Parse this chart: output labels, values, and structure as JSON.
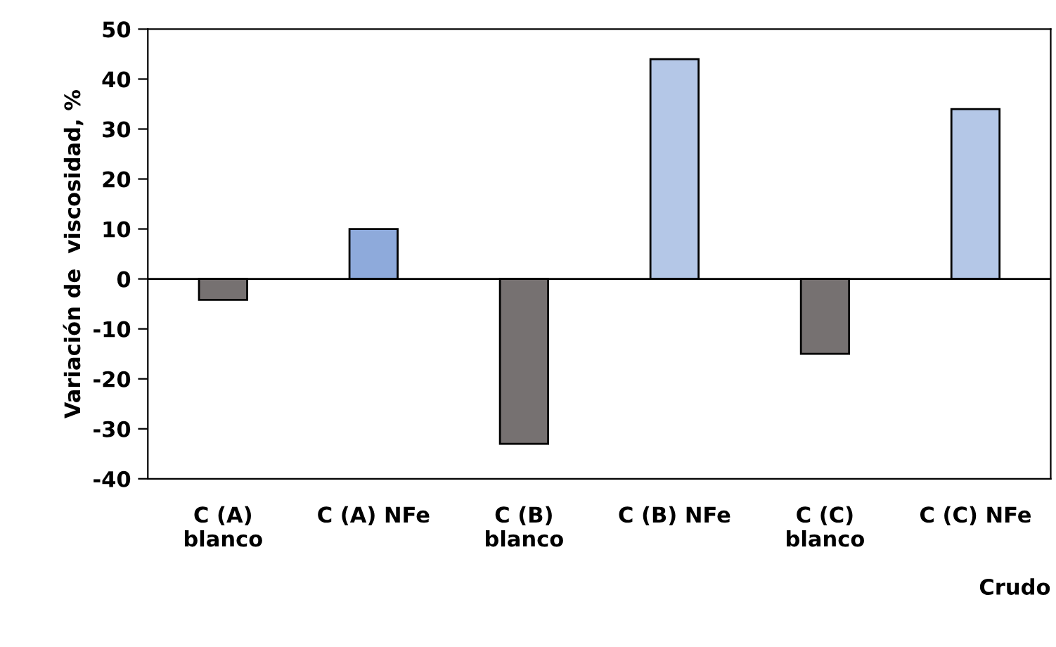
{
  "chart_data": {
    "type": "bar",
    "xlabel": "Crudo",
    "ylabel": "Variación de  viscosidad, %",
    "categories": [
      "C (A)\nblanco",
      "C (A) NFe",
      "C (B)\nblanco",
      "C (B) NFe",
      "C (C)\nblanco",
      "C (C) NFe"
    ],
    "values": [
      -4.2,
      10,
      -33,
      44,
      -15,
      34
    ],
    "colors": [
      "#767171",
      "#8eaadb",
      "#767171",
      "#b4c7e7",
      "#767171",
      "#b4c7e7"
    ],
    "ylim": [
      -40,
      50
    ],
    "yticks": [
      -40,
      -30,
      -20,
      -10,
      0,
      10,
      20,
      30,
      40,
      50
    ]
  }
}
